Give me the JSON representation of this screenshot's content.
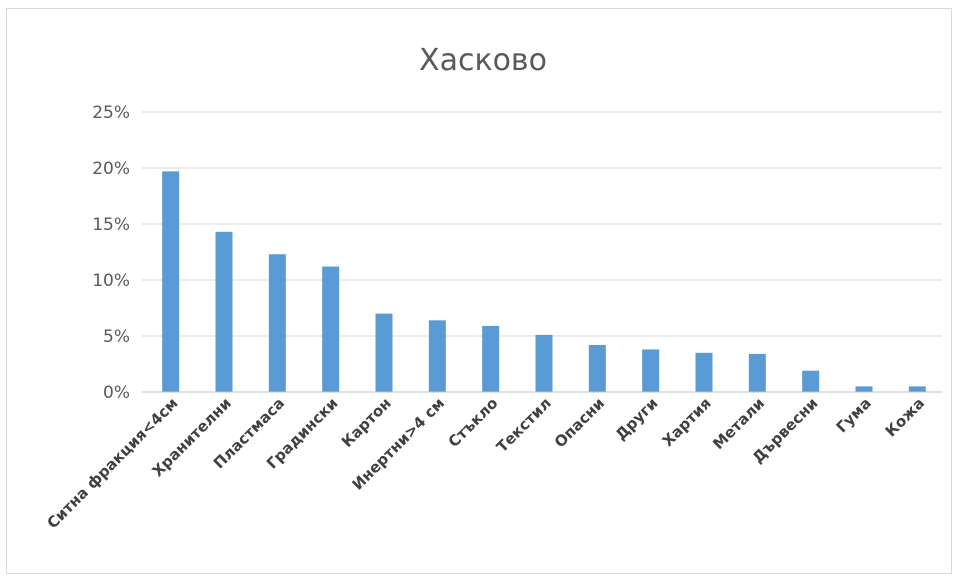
{
  "chart_data": {
    "type": "bar",
    "title": "Хасково",
    "xlabel": "",
    "ylabel": "",
    "ylim": [
      0,
      25
    ],
    "y_ticks": [
      0,
      5,
      10,
      15,
      20,
      25
    ],
    "y_tick_labels": [
      "0%",
      "5%",
      "10%",
      "15%",
      "20%",
      "25%"
    ],
    "grid": true,
    "legend": "none",
    "categories": [
      "Ситна фракция<4см",
      "Хранителни",
      "Пластмаса",
      "Градински",
      "Картон",
      "Инертни>4 см",
      "Стъкло",
      "Текстил",
      "Опасни",
      "Други",
      "Хартия",
      "Метали",
      "Дървесни",
      "Гума",
      "Кожа"
    ],
    "values": [
      19.7,
      14.3,
      12.3,
      11.2,
      7.0,
      6.4,
      5.9,
      5.1,
      4.2,
      3.8,
      3.5,
      3.4,
      1.9,
      0.5,
      0.5
    ],
    "bar_color": "#5b9bd5"
  }
}
